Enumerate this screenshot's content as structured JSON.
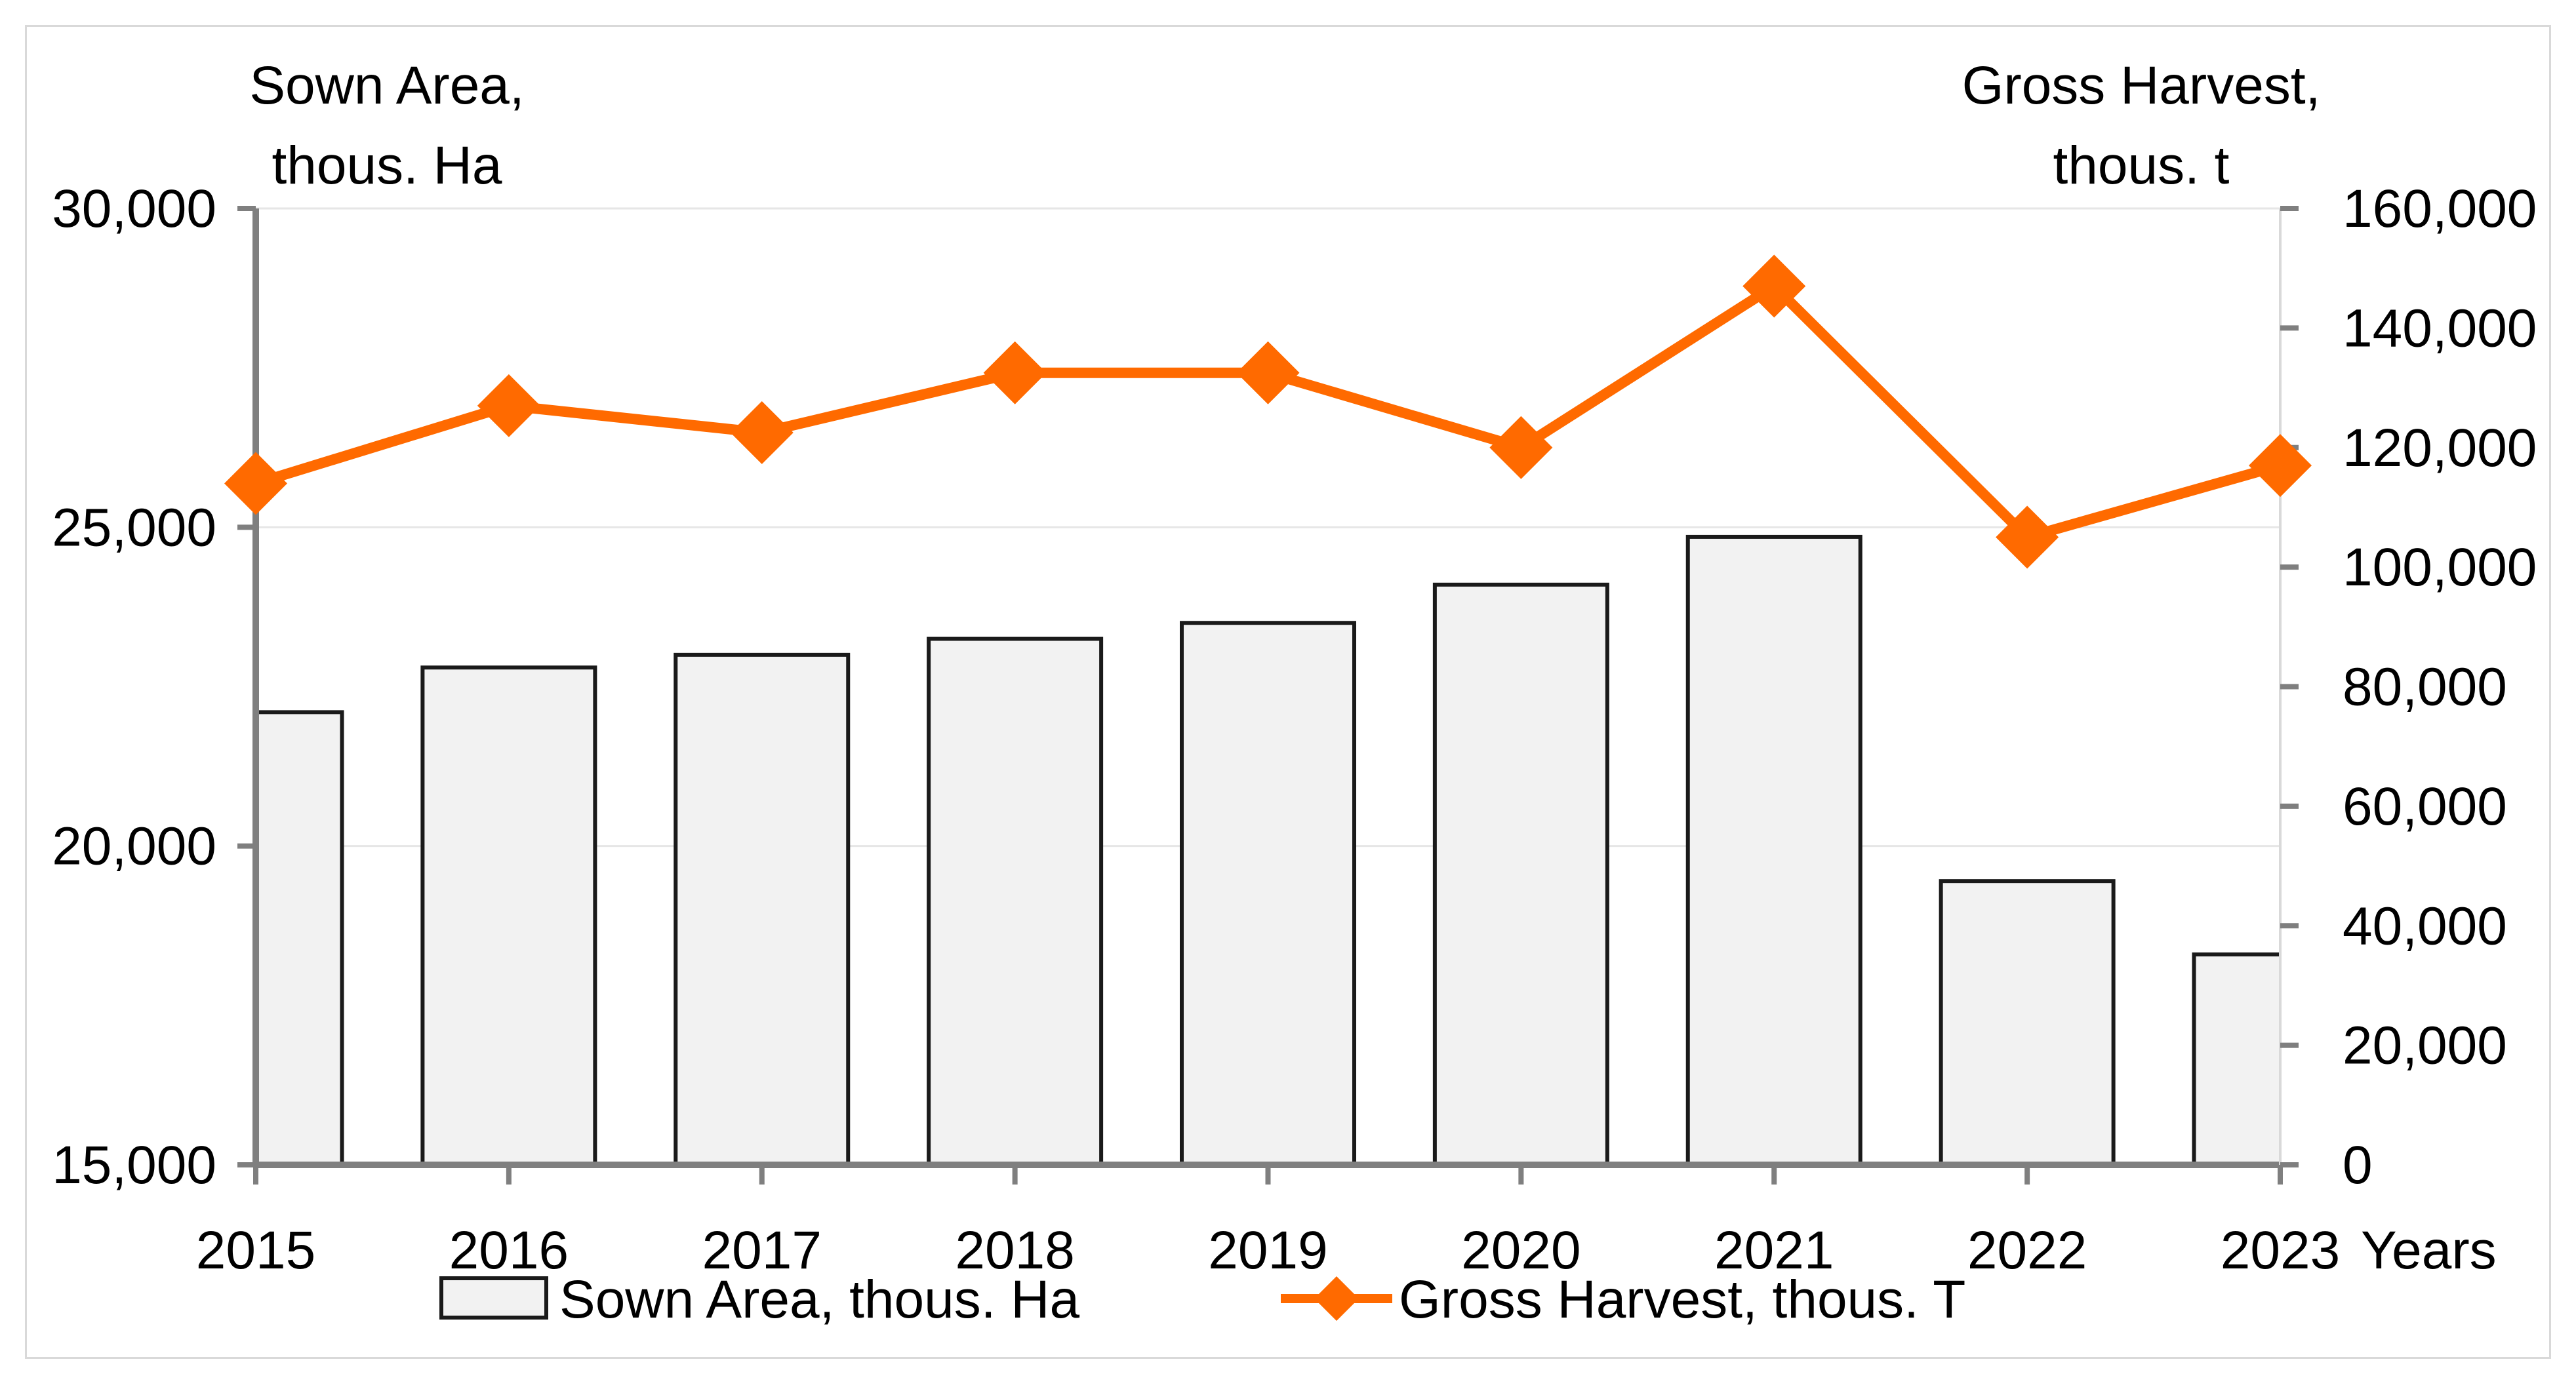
{
  "chart_data": {
    "type": "bar+line",
    "categories": [
      "2015",
      "2016",
      "2017",
      "2018",
      "2019",
      "2020",
      "2021",
      "2022",
      "2023"
    ],
    "x_unit_label": "Years",
    "series": [
      {
        "name": "Sown Area, thous. Ha",
        "type": "bar",
        "axis": "left",
        "values": [
          22100,
          22800,
          23000,
          23250,
          23500,
          24100,
          24850,
          19450,
          18300
        ],
        "color": "#f2f2f2",
        "stroke": "#1a1a1a"
      },
      {
        "name": "Gross Harvest, thous. T",
        "type": "line",
        "axis": "right",
        "values": [
          114000,
          127000,
          122500,
          132500,
          132500,
          120000,
          147000,
          105000,
          117000
        ],
        "color": "#ff6a00"
      }
    ],
    "left_axis": {
      "title_line1": "Sown Area,",
      "title_line2": "thous. Ha",
      "ylim": [
        15000,
        30000
      ],
      "ticks": [
        15000,
        20000,
        25000,
        30000
      ],
      "tick_labels": [
        "15,000",
        "20,000",
        "25,000",
        "30,000"
      ]
    },
    "right_axis": {
      "title_line1": "Gross Harvest,",
      "title_line2": "thous. t",
      "ylim": [
        0,
        160000
      ],
      "ticks": [
        0,
        20000,
        40000,
        60000,
        80000,
        100000,
        120000,
        140000,
        160000
      ],
      "tick_labels": [
        "0",
        "20,000",
        "40,000",
        "60,000",
        "80,000",
        "100,000",
        "120,000",
        "140,000",
        "160,000"
      ]
    },
    "legend": {
      "position": "bottom",
      "items": [
        "Sown Area, thous. Ha",
        "Gross Harvest, thous. T"
      ]
    },
    "grid": true
  }
}
